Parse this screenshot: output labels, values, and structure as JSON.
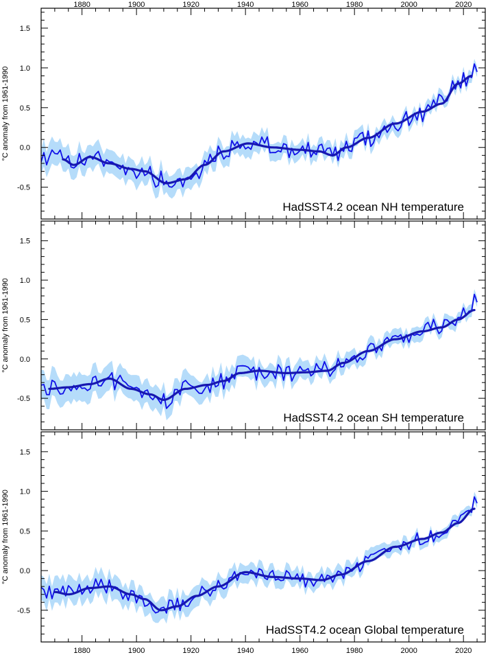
{
  "chart_data": [
    {
      "type": "line",
      "title": "HadSST4.2 ocean NH temperature",
      "ylabel": "°C anomaly from 1961-1990",
      "xlim": [
        1865,
        2028
      ],
      "ylim": [
        -0.9,
        1.75
      ],
      "yticks": [
        -0.5,
        0.0,
        0.5,
        1.0,
        1.5
      ],
      "ytick_labels": [
        "-0.5",
        "0.0",
        "0.5",
        "1.0",
        "1.5"
      ],
      "xticks": [
        1880,
        1900,
        1920,
        1940,
        1960,
        1980,
        2000,
        2020
      ],
      "xtick_labels": [
        "1880",
        "1900",
        "1920",
        "1940",
        "1960",
        "1980",
        "2000",
        "2020"
      ],
      "colors": {
        "annual": "#1010e8",
        "smooth": "#1717b0",
        "band": "#b5dcfa"
      },
      "smooth_knots": {
        "x": [
          1873,
          1877,
          1883,
          1890,
          1898,
          1903,
          1911,
          1918,
          1925,
          1932,
          1941,
          1950,
          1960,
          1967,
          1972,
          1977,
          1985,
          1995,
          2005,
          2012,
          2018,
          2023
        ],
        "y": [
          -0.15,
          -0.22,
          -0.12,
          -0.2,
          -0.27,
          -0.3,
          -0.45,
          -0.4,
          -0.22,
          -0.05,
          0.05,
          0.0,
          -0.03,
          -0.05,
          -0.1,
          0.0,
          0.12,
          0.3,
          0.45,
          0.55,
          0.8,
          0.9
        ]
      },
      "annual_end": [
        1.05,
        0.95
      ],
      "band_halfwidth_early": 0.16,
      "band_halfwidth_late": 0.06,
      "noise": 0.11
    },
    {
      "type": "line",
      "title": "HadSST4.2 ocean SH temperature",
      "ylabel": "°C anomaly from 1961-1990",
      "xlim": [
        1865,
        2028
      ],
      "ylim": [
        -0.9,
        1.75
      ],
      "yticks": [
        -0.5,
        0.0,
        0.5,
        1.0,
        1.5
      ],
      "ytick_labels": [
        "-0.5",
        "0.0",
        "0.5",
        "1.0",
        "1.5"
      ],
      "xticks": [
        1880,
        1900,
        1920,
        1940,
        1960,
        1980,
        2000,
        2020
      ],
      "xtick_labels": [
        "1880",
        "1900",
        "1920",
        "1940",
        "1960",
        "1980",
        "2000",
        "2020"
      ],
      "colors": {
        "annual": "#1010e8",
        "smooth": "#1717b0",
        "band": "#b5dcfa"
      },
      "smooth_knots": {
        "x": [
          1868,
          1875,
          1883,
          1890,
          1898,
          1905,
          1910,
          1918,
          1926,
          1932,
          1938,
          1945,
          1955,
          1962,
          1970,
          1976,
          1985,
          1995,
          2005,
          2012,
          2018,
          2024
        ],
        "y": [
          -0.38,
          -0.36,
          -0.32,
          -0.25,
          -0.38,
          -0.45,
          -0.52,
          -0.38,
          -0.33,
          -0.28,
          -0.18,
          -0.15,
          -0.18,
          -0.17,
          -0.15,
          -0.05,
          0.1,
          0.25,
          0.35,
          0.4,
          0.5,
          0.62
        ]
      },
      "annual_end": [
        0.82,
        0.72
      ],
      "band_halfwidth_early": 0.18,
      "band_halfwidth_late": 0.06,
      "noise": 0.1
    },
    {
      "type": "line",
      "title": "HadSST4.2 ocean Global temperature",
      "ylabel": "°C anomaly from 1961-1990",
      "xlim": [
        1865,
        2028
      ],
      "ylim": [
        -0.9,
        1.75
      ],
      "yticks": [
        -0.5,
        0.0,
        0.5,
        1.0,
        1.5
      ],
      "ytick_labels": [
        "-0.5",
        "0.0",
        "0.5",
        "1.0",
        "1.5"
      ],
      "xticks": [
        1880,
        1900,
        1920,
        1940,
        1960,
        1980,
        2000,
        2020
      ],
      "xtick_labels": [
        "1880",
        "1900",
        "1920",
        "1940",
        "1960",
        "1980",
        "2000",
        "2020"
      ],
      "colors": {
        "annual": "#1010e8",
        "smooth": "#1717b0",
        "band": "#b5dcfa"
      },
      "smooth_knots": {
        "x": [
          1870,
          1875,
          1883,
          1890,
          1898,
          1903,
          1909,
          1915,
          1922,
          1930,
          1940,
          1950,
          1960,
          1968,
          1975,
          1985,
          1995,
          2005,
          2012,
          2018,
          2024
        ],
        "y": [
          -0.27,
          -0.3,
          -0.22,
          -0.2,
          -0.3,
          -0.36,
          -0.5,
          -0.45,
          -0.32,
          -0.2,
          -0.02,
          -0.08,
          -0.1,
          -0.12,
          -0.05,
          0.12,
          0.3,
          0.4,
          0.48,
          0.6,
          0.78
        ]
      },
      "annual_end": [
        0.93,
        0.85
      ],
      "band_halfwidth_early": 0.16,
      "band_halfwidth_late": 0.05,
      "noise": 0.09
    }
  ]
}
